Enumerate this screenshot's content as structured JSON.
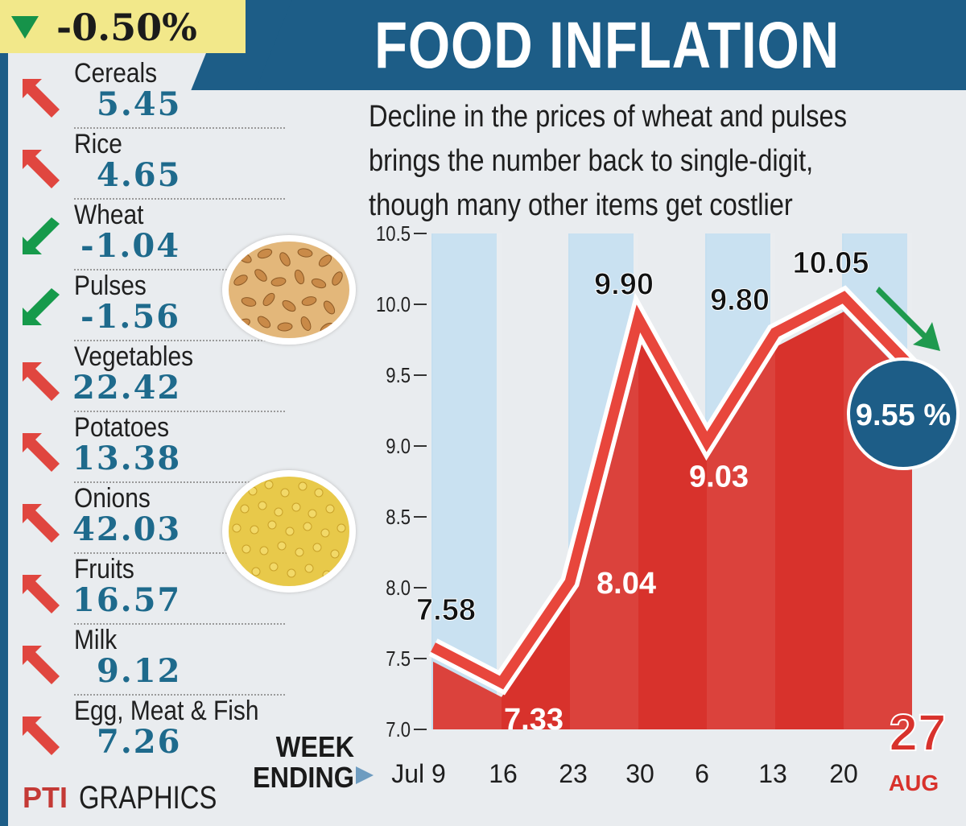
{
  "header": {
    "title": "FOOD INFLATION",
    "overall_change": "-0.50%"
  },
  "subtitle_lines": [
    "Decline in the prices of wheat and pulses",
    "brings the number back to single-digit,",
    "though many other items get costlier"
  ],
  "items": [
    {
      "name": "Cereals",
      "value": "5.45",
      "trend": "up"
    },
    {
      "name": "Rice",
      "value": "4.65",
      "trend": "up"
    },
    {
      "name": "Wheat",
      "value": "-1.04",
      "trend": "down"
    },
    {
      "name": "Pulses",
      "value": "-1.56",
      "trend": "down"
    },
    {
      "name": "Vegetables",
      "value": "22.42",
      "trend": "up"
    },
    {
      "name": "Potatoes",
      "value": "13.38",
      "trend": "up"
    },
    {
      "name": "Onions",
      "value": "42.03",
      "trend": "up"
    },
    {
      "name": "Fruits",
      "value": "16.57",
      "trend": "up"
    },
    {
      "name": "Milk",
      "value": "9.12",
      "trend": "up"
    },
    {
      "name": "Egg, Meat & Fish",
      "value": "7.26",
      "trend": "up"
    }
  ],
  "colors": {
    "up": "#e0463f",
    "down": "#169a4b",
    "accent_blue": "#1d5d87",
    "value_text": "#1e6a8c",
    "area_fill": "#d8322c",
    "line": "#e8463c",
    "stripe": "#c5dff0"
  },
  "icons": [
    "up-trend-arrow-icon",
    "down-trend-arrow-icon",
    "down-triangle-icon",
    "down-arrow-icon"
  ],
  "week_label": "WEEK",
  "ending_label": "ENDING",
  "brand": {
    "pti": "PTI",
    "graphics": "GRAPHICS"
  },
  "chart_data": {
    "type": "area",
    "x": [
      "Jul 9",
      "16",
      "23",
      "30",
      "6",
      "13",
      "20",
      "27 AUG"
    ],
    "tick_labels": [
      "Jul 9",
      "16",
      "23",
      "30",
      "6",
      "13",
      "20",
      "27"
    ],
    "month_label": "AUG",
    "values": [
      7.58,
      7.33,
      8.04,
      9.9,
      9.03,
      9.8,
      10.05,
      9.55
    ],
    "data_labels": [
      "7.58",
      "7.33",
      "8.04",
      "9.90",
      "9.03",
      "9.80",
      "10.05",
      "9.55 %"
    ],
    "ylim": [
      7.0,
      10.5
    ],
    "yticks": [
      "7.0",
      "7.5",
      "8.0",
      "8.5",
      "9.0",
      "9.5",
      "10.0",
      "10.5"
    ],
    "ytick_values": [
      7.0,
      7.5,
      8.0,
      8.5,
      9.0,
      9.5,
      10.0,
      10.5
    ],
    "xlabel": "WEEK ENDING",
    "ylabel": "",
    "grid": false
  }
}
